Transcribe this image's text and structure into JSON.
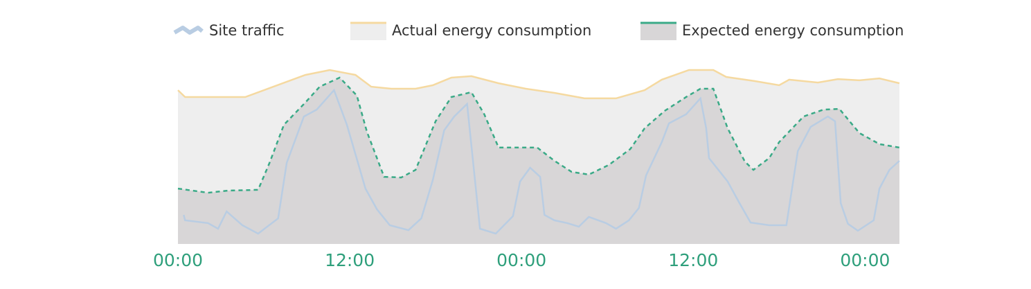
{
  "chart_data": {
    "type": "area",
    "xlim": [
      0,
      50.4
    ],
    "ylim": [
      0,
      100
    ],
    "xticks": [
      {
        "value": 0,
        "label": "00:00"
      },
      {
        "value": 12,
        "label": "12:00"
      },
      {
        "value": 24,
        "label": "00:00"
      },
      {
        "value": 36,
        "label": "12:00"
      },
      {
        "value": 48,
        "label": "00:00"
      }
    ],
    "series": [
      {
        "name": "Site traffic",
        "color": "#b9cde3",
        "x": [
          0.4,
          0.5,
          2.1,
          2.8,
          3.4,
          4.5,
          5.6,
          7.0,
          7.6,
          8.8,
          9.7,
          10.9,
          11.8,
          13.1,
          13.9,
          14.8,
          16.1,
          17.0,
          17.8,
          18.6,
          19.3,
          20.2,
          21.1,
          22.2,
          23.4,
          23.9,
          24.6,
          25.3,
          25.6,
          26.3,
          27.2,
          28.0,
          28.7,
          29.9,
          30.6,
          31.5,
          32.2,
          32.7,
          33.8,
          34.3,
          35.5,
          36.5,
          36.9,
          37.1,
          38.4,
          39.2,
          40.0,
          41.3,
          42.5,
          43.3,
          44.2,
          45.4,
          45.9,
          46.3,
          46.8,
          47.5,
          48.6,
          49.0,
          49.7,
          50.4
        ],
        "values": [
          16.0,
          13.0,
          11.5,
          8.4,
          17.9,
          10.3,
          5.7,
          14.1,
          44.7,
          70.2,
          74.0,
          84.7,
          65.6,
          30.5,
          19.1,
          10.3,
          7.6,
          14.1,
          35.1,
          62.6,
          70.2,
          77.1,
          8.4,
          5.7,
          15.3,
          34.4,
          42.0,
          37.0,
          16.0,
          13.0,
          11.5,
          9.5,
          14.9,
          11.5,
          8.4,
          13.0,
          19.8,
          37.8,
          56.1,
          66.4,
          71.4,
          80.2,
          63.7,
          47.3,
          34.4,
          22.9,
          11.8,
          10.3,
          10.3,
          51.1,
          64.5,
          70.2,
          67.6,
          22.5,
          11.1,
          7.3,
          13.0,
          30.5,
          40.8,
          45.8
        ]
      },
      {
        "name": "Actual energy consumption",
        "color": "#f5d9a0",
        "fill": "#eeeeee",
        "x": [
          0,
          0.5,
          4.7,
          8.9,
          10.6,
          12.4,
          13.5,
          14.9,
          16.6,
          17.8,
          19.1,
          20.5,
          22.4,
          24.3,
          26.3,
          28.4,
          30.6,
          32.6,
          33.8,
          35.7,
          37.4,
          38.3,
          40.3,
          42.0,
          42.7,
          44.7,
          46.1,
          47.6,
          49.0,
          50.4
        ],
        "values": [
          84.7,
          80.9,
          80.9,
          93.1,
          95.8,
          93.1,
          86.6,
          85.5,
          85.5,
          87.4,
          91.6,
          92.4,
          88.5,
          85.5,
          83.2,
          80.2,
          80.2,
          84.7,
          90.5,
          95.8,
          95.8,
          92.0,
          89.7,
          87.4,
          90.5,
          88.9,
          90.8,
          90.1,
          91.2,
          88.5
        ]
      },
      {
        "name": "Expected energy consumption",
        "color": "#3aaa87",
        "fill": "#d8d6d7",
        "dash": true,
        "x": [
          0,
          2.1,
          3.5,
          5.6,
          6.4,
          7.4,
          8.9,
          9.9,
          11.3,
          12.5,
          13.2,
          14.4,
          15.6,
          16.6,
          18.0,
          19.1,
          20.5,
          21.4,
          22.4,
          25.1,
          26.3,
          27.5,
          28.7,
          30.1,
          31.6,
          32.6,
          34.0,
          35.5,
          36.5,
          37.4,
          38.4,
          39.6,
          40.2,
          41.3,
          42.0,
          43.7,
          45.1,
          46.2,
          47.6,
          49.0,
          50.4
        ],
        "values": [
          30.5,
          28.2,
          29.4,
          29.8,
          44.7,
          65.6,
          77.9,
          86.6,
          91.6,
          81.7,
          61.8,
          37.0,
          36.6,
          40.8,
          67.6,
          80.9,
          83.6,
          71.4,
          53.1,
          53.1,
          45.8,
          39.7,
          38.2,
          43.5,
          52.3,
          63.7,
          73.3,
          80.9,
          85.5,
          85.5,
          63.7,
          45.4,
          40.8,
          47.3,
          56.1,
          70.2,
          74.0,
          74.4,
          61.1,
          55.0,
          53.1
        ]
      }
    ]
  }
}
